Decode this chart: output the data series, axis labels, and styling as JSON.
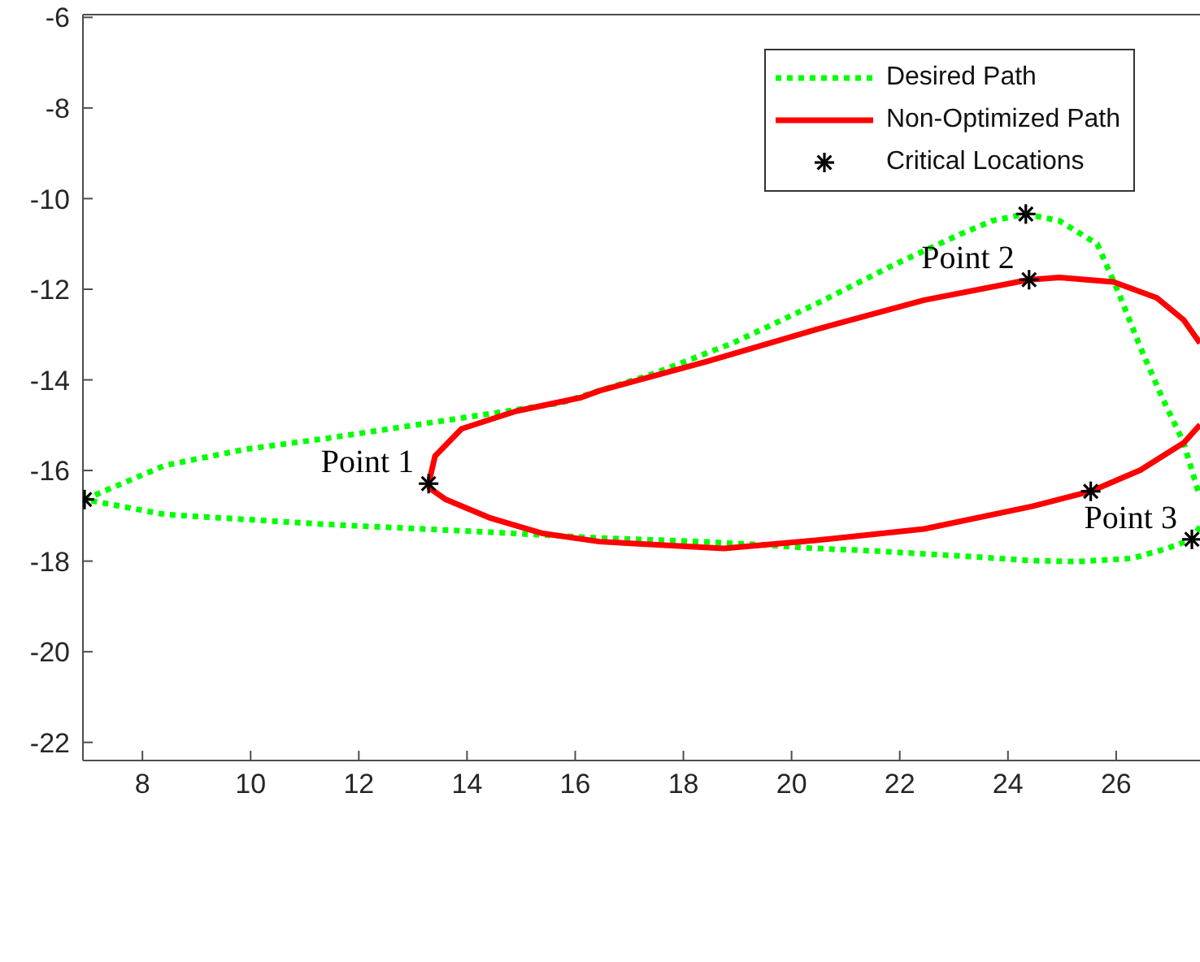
{
  "chart_data": {
    "type": "line",
    "xlim": [
      6.9,
      27.55
    ],
    "xticks": [
      8,
      10,
      12,
      14,
      16,
      18,
      20,
      22,
      24,
      26
    ],
    "ylim": [
      -22.4,
      -5.94
    ],
    "yticks": [
      -6,
      -8,
      -10,
      -12,
      -14,
      -16,
      -18,
      -20,
      -22
    ],
    "grid": false,
    "legend": "top right",
    "series": [
      {
        "name": "Desired Path",
        "color": "#00ff00",
        "line_style": "dotted",
        "x": [
          6.93,
          8.41,
          9.91,
          11.41,
          12.91,
          14.41,
          15.73,
          17.41,
          18.91,
          20.41,
          21.91,
          23.11,
          23.71,
          24.33,
          24.95,
          25.65,
          26.05,
          26.45,
          26.85,
          27.25,
          27.5,
          27.55,
          null,
          27.55,
          27.4,
          26.89,
          26.29,
          25.3,
          24.45,
          23.44,
          22.45,
          21.46,
          20.45,
          19.45,
          18.34,
          16.45,
          14.41,
          11.41,
          8.41,
          6.93
        ],
        "values": [
          -16.64,
          -15.89,
          -15.53,
          -15.29,
          -15.02,
          -14.75,
          -14.51,
          -13.88,
          -13.19,
          -12.35,
          -11.45,
          -10.79,
          -10.49,
          -10.34,
          -10.49,
          -11.0,
          -12.09,
          -13.29,
          -14.39,
          -15.39,
          -16.4,
          -16.56,
          null,
          -17.24,
          -17.52,
          -17.74,
          -17.94,
          -18.01,
          -17.99,
          -17.91,
          -17.84,
          -17.77,
          -17.72,
          -17.64,
          -17.57,
          -17.49,
          -17.36,
          -17.19,
          -16.97,
          -16.64
        ]
      },
      {
        "name": "Non-Optimized Path",
        "color": "#ff0000",
        "line_style": "solid",
        "x": [
          13.29,
          13.41,
          13.9,
          14.91,
          16.11,
          16.45,
          18.45,
          20.45,
          22.45,
          24.39,
          24.95,
          25.95,
          26.75,
          27.25,
          27.55,
          null,
          27.55,
          27.25,
          26.45,
          25.53,
          24.45,
          22.45,
          20.45,
          18.75,
          16.45,
          15.4,
          14.41,
          13.61,
          13.31,
          13.29
        ],
        "values": [
          -16.29,
          -15.68,
          -15.08,
          -14.69,
          -14.39,
          -14.24,
          -13.59,
          -12.89,
          -12.24,
          -11.79,
          -11.74,
          -11.84,
          -12.19,
          -12.68,
          -13.19,
          null,
          -14.99,
          -15.39,
          -15.99,
          -16.46,
          -16.79,
          -17.29,
          -17.54,
          -17.72,
          -17.57,
          -17.39,
          -17.04,
          -16.64,
          -16.39,
          -16.29
        ]
      },
      {
        "name": "Critical Locations",
        "type": "scatter",
        "color": "#000000",
        "marker": "cross",
        "x": [
          6.93,
          13.29,
          24.33,
          24.39,
          25.53,
          27.4
        ],
        "values": [
          -16.64,
          -16.29,
          -10.34,
          -11.79,
          -16.46,
          -17.52
        ]
      }
    ],
    "annotations": [
      {
        "text": "Point 1",
        "x": 13.29,
        "y": -16.29
      },
      {
        "text": "Point 2",
        "x": 24.39,
        "y": -11.79
      },
      {
        "text": "Point 3",
        "x": 27.4,
        "y": -17.52
      }
    ]
  }
}
